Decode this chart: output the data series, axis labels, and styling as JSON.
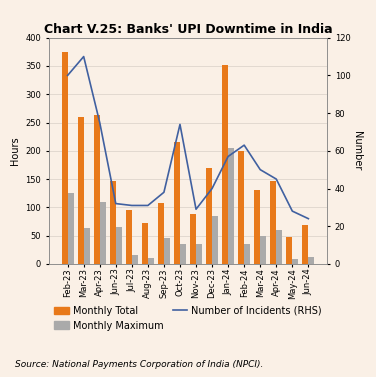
{
  "title": "Chart V.25: Banks' UPI Downtime in India",
  "categories": [
    "Feb-23",
    "Mar-23",
    "Apr-23",
    "Jun-23",
    "Jul-23",
    "Aug-23",
    "Sep-23",
    "Oct-23",
    "Nov-23",
    "Dec-23",
    "Jan-24",
    "Feb-24",
    "Mar-24",
    "Apr-24",
    "May-24",
    "Jun-24"
  ],
  "monthly_total": [
    375,
    260,
    263,
    147,
    96,
    72,
    107,
    215,
    88,
    170,
    352,
    200,
    130,
    147,
    47,
    68
  ],
  "monthly_maximum": [
    125,
    63,
    110,
    65,
    15,
    10,
    45,
    35,
    35,
    85,
    205,
    35,
    50,
    60,
    8,
    13
  ],
  "num_incidents": [
    100,
    110,
    75,
    32,
    31,
    31,
    38,
    74,
    29,
    40,
    57,
    63,
    50,
    45,
    28,
    24
  ],
  "bar_color_total": "#E8791A",
  "bar_color_max": "#AAAAAA",
  "line_color": "#4060A0",
  "background_color": "#FAF0E6",
  "ylabel_left": "Hours",
  "ylabel_right": "Number",
  "ylim_left": [
    0,
    400
  ],
  "ylim_right": [
    0,
    120
  ],
  "yticks_left": [
    0,
    50,
    100,
    150,
    200,
    250,
    300,
    350,
    400
  ],
  "yticks_right": [
    0,
    20,
    40,
    60,
    80,
    100,
    120
  ],
  "source": "Source: National Payments Corporation of India (NPCI).",
  "legend_labels": [
    "Monthly Total",
    "Monthly Maximum",
    "Number of Incidents (RHS)"
  ],
  "title_fontsize": 9,
  "label_fontsize": 7,
  "tick_fontsize": 6,
  "legend_fontsize": 7,
  "source_fontsize": 6.5
}
